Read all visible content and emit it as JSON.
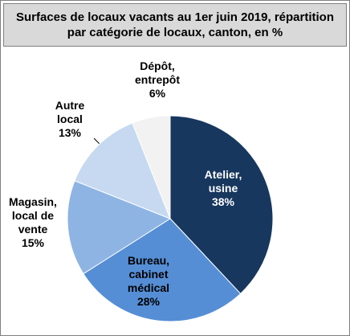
{
  "chart_data": {
    "type": "pie",
    "title": "Surfaces de locaux vacants au 1er juin 2019, répartition par catégorie de locaux, canton, en %",
    "categories": [
      "Atelier, usine",
      "Bureau, cabinet médical",
      "Magasin, local de vente",
      "Autre local",
      "Dépôt, entrepôt"
    ],
    "values": [
      38,
      28,
      15,
      13,
      6
    ],
    "value_labels": [
      "38%",
      "28%",
      "15%",
      "13%",
      "6%"
    ],
    "colors": [
      "#17375e",
      "#558ed5",
      "#8eb4e3",
      "#c6d9f1",
      "#f2f2f2"
    ]
  }
}
